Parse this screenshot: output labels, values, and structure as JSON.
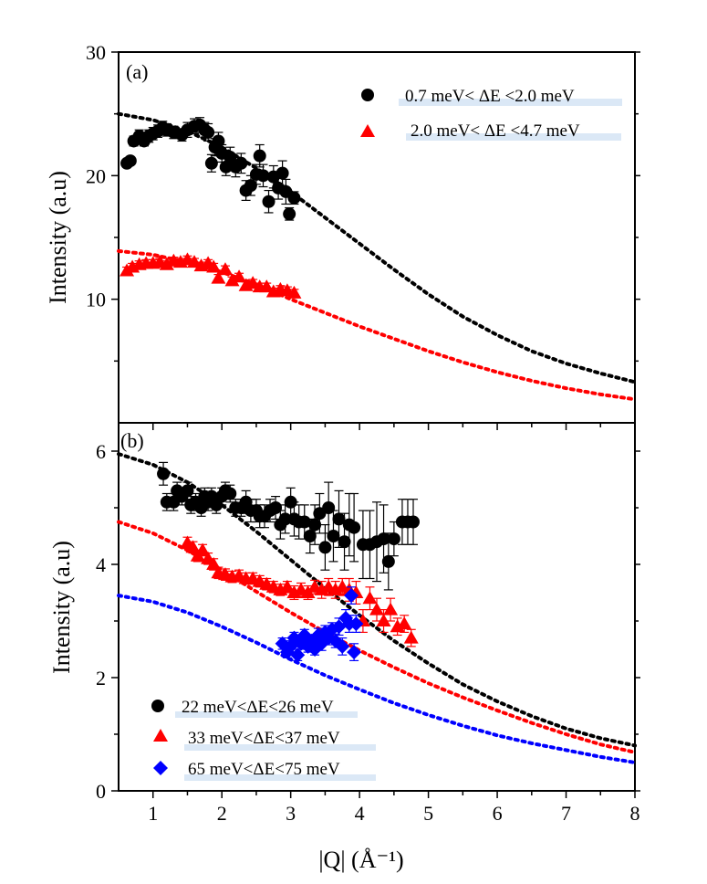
{
  "chart_data": [
    {
      "type": "scatter",
      "panel_label": "(a)",
      "ylabel": "Intensity (a.u)",
      "xlabel": "|Q| (Å⁻¹)",
      "xlim": [
        0.5,
        8
      ],
      "ylim": [
        0,
        30
      ],
      "xticks": [
        1,
        2,
        3,
        4,
        5,
        6,
        7,
        8
      ],
      "yticks": [
        10,
        20,
        30
      ],
      "ytick_labels": [
        "10",
        "20",
        "30"
      ],
      "legend_position": "top-right",
      "series": [
        {
          "name": "0.7 meV< ΔE <2.0 meV",
          "marker": "circle",
          "color": "#000000",
          "x": [
            0.62,
            0.67,
            0.72,
            0.8,
            0.87,
            0.94,
            1.0,
            1.07,
            1.14,
            1.2,
            1.3,
            1.42,
            1.5,
            1.6,
            1.68,
            1.75,
            1.8,
            1.85,
            1.9,
            1.95,
            2.0,
            2.06,
            2.12,
            2.2,
            2.28,
            2.35,
            2.42,
            2.5,
            2.55,
            2.6,
            2.68,
            2.75,
            2.82,
            2.88,
            2.93,
            2.98,
            3.05
          ],
          "y": [
            21.0,
            21.2,
            22.8,
            23.2,
            22.8,
            23.2,
            23.4,
            23.6,
            23.9,
            23.7,
            23.5,
            23.3,
            23.7,
            24.0,
            24.1,
            23.7,
            23.5,
            21.0,
            22.3,
            22.8,
            21.8,
            20.7,
            21.5,
            20.7,
            21.0,
            18.8,
            19.2,
            20.1,
            21.6,
            20.0,
            17.9,
            19.9,
            19.0,
            20.2,
            18.7,
            16.9,
            18.2
          ],
          "err": [
            0.3,
            0.3,
            0.4,
            0.5,
            0.4,
            0.5,
            0.5,
            0.5,
            0.5,
            0.5,
            0.5,
            0.5,
            0.6,
            0.6,
            0.6,
            0.6,
            0.7,
            0.7,
            0.7,
            0.7,
            0.7,
            0.7,
            0.8,
            0.8,
            0.8,
            0.8,
            0.8,
            0.8,
            0.9,
            0.9,
            0.9,
            0.9,
            0.9,
            1.0,
            1.0,
            0.5,
            0.5
          ]
        },
        {
          "name": "2.0 meV< ΔE <4.7 meV",
          "marker": "triangle",
          "color": "#ff0000",
          "x": [
            0.62,
            0.7,
            0.8,
            0.9,
            1.0,
            1.1,
            1.2,
            1.3,
            1.4,
            1.5,
            1.6,
            1.7,
            1.8,
            1.88,
            1.95,
            2.05,
            2.15,
            2.25,
            2.35,
            2.45,
            2.55,
            2.65,
            2.75,
            2.85,
            2.95,
            3.05
          ],
          "y": [
            12.3,
            12.6,
            12.8,
            12.9,
            12.9,
            13.0,
            12.8,
            13.1,
            13.0,
            13.2,
            13.0,
            12.7,
            12.9,
            12.6,
            11.7,
            12.4,
            11.5,
            11.8,
            11.1,
            11.3,
            11.0,
            11.0,
            10.6,
            10.8,
            10.7,
            10.5
          ],
          "err": [
            0.3,
            0.3,
            0.3,
            0.3,
            0.3,
            0.3,
            0.3,
            0.3,
            0.3,
            0.3,
            0.3,
            0.3,
            0.3,
            0.3,
            0.3,
            0.3,
            0.3,
            0.3,
            0.3,
            0.3,
            0.3,
            0.3,
            0.3,
            0.3,
            0.3,
            0.3
          ]
        }
      ],
      "fit_curves": [
        {
          "name": "fit black",
          "color": "#000000",
          "x": [
            0.5,
            1.0,
            1.5,
            2.0,
            2.5,
            3.0,
            3.5,
            4.0,
            4.5,
            5.0,
            5.5,
            6.0,
            6.5,
            7.0,
            7.5,
            8.0
          ],
          "y": [
            25.0,
            24.5,
            23.6,
            22.3,
            20.6,
            18.7,
            16.6,
            14.5,
            12.4,
            10.4,
            8.6,
            7.1,
            5.8,
            4.8,
            4.0,
            3.3
          ]
        },
        {
          "name": "fit red",
          "color": "#ff0000",
          "x": [
            0.5,
            1.0,
            1.5,
            2.0,
            2.5,
            3.0,
            3.5,
            4.0,
            4.5,
            5.0,
            5.5,
            6.0,
            6.5,
            7.0,
            7.5,
            8.0
          ],
          "y": [
            13.9,
            13.6,
            13.0,
            12.2,
            11.2,
            10.0,
            8.9,
            7.8,
            6.8,
            5.8,
            4.9,
            4.1,
            3.4,
            2.8,
            2.3,
            1.9
          ]
        }
      ]
    },
    {
      "type": "scatter",
      "panel_label": "(b)",
      "ylabel": "Intensity (a.u)",
      "xlabel": "|Q| (Å⁻¹)",
      "xlim": [
        0.5,
        8
      ],
      "ylim": [
        0,
        6.5
      ],
      "xticks": [
        1,
        2,
        3,
        4,
        5,
        6,
        7,
        8
      ],
      "xtick_labels": [
        "1",
        "2",
        "3",
        "4",
        "5",
        "6",
        "7",
        "8"
      ],
      "yticks": [
        0,
        2,
        4,
        6
      ],
      "ytick_labels": [
        "0",
        "2",
        "4",
        "6"
      ],
      "legend_position": "bottom-left",
      "series": [
        {
          "name": "22 meV<ΔE<26 meV",
          "marker": "circle",
          "color": "#000000",
          "x": [
            1.15,
            1.2,
            1.3,
            1.35,
            1.42,
            1.5,
            1.55,
            1.62,
            1.7,
            1.75,
            1.8,
            1.85,
            1.92,
            2.0,
            2.05,
            2.12,
            2.2,
            2.28,
            2.35,
            2.42,
            2.5,
            2.55,
            2.62,
            2.7,
            2.78,
            2.85,
            2.92,
            3.0,
            3.05,
            3.12,
            3.2,
            3.28,
            3.35,
            3.42,
            3.5,
            3.55,
            3.62,
            3.7,
            3.78,
            3.85,
            3.92,
            4.05,
            4.15,
            4.25,
            4.35,
            4.42,
            4.5,
            4.62,
            4.7,
            4.78
          ],
          "y": [
            5.6,
            5.1,
            5.1,
            5.3,
            5.2,
            5.3,
            5.05,
            5.1,
            5.0,
            5.2,
            5.1,
            5.2,
            5.05,
            5.2,
            5.3,
            5.25,
            5.0,
            5.0,
            5.1,
            4.95,
            4.95,
            4.85,
            4.85,
            4.95,
            5.0,
            4.7,
            4.8,
            5.1,
            4.8,
            4.75,
            4.75,
            4.5,
            4.7,
            4.9,
            4.3,
            5.0,
            4.5,
            4.8,
            4.4,
            4.7,
            4.65,
            4.35,
            4.35,
            4.4,
            4.45,
            4.05,
            4.45,
            4.75,
            4.75,
            4.75
          ],
          "err": [
            0.2,
            0.15,
            0.15,
            0.15,
            0.15,
            0.15,
            0.15,
            0.15,
            0.15,
            0.15,
            0.15,
            0.15,
            0.15,
            0.15,
            0.15,
            0.15,
            0.15,
            0.15,
            0.2,
            0.2,
            0.2,
            0.2,
            0.2,
            0.2,
            0.2,
            0.25,
            0.25,
            0.25,
            0.3,
            0.3,
            0.3,
            0.3,
            0.35,
            0.35,
            0.4,
            0.45,
            0.45,
            0.5,
            0.5,
            0.55,
            0.6,
            0.6,
            0.6,
            0.7,
            0.6,
            0.5,
            0.3,
            0.4,
            0.4,
            0.4
          ]
        },
        {
          "name": "33 meV<ΔE<37 meV",
          "marker": "triangle",
          "color": "#ff0000",
          "x": [
            1.5,
            1.58,
            1.65,
            1.72,
            1.8,
            1.88,
            1.95,
            2.05,
            2.15,
            2.25,
            2.35,
            2.45,
            2.55,
            2.65,
            2.75,
            2.85,
            2.95,
            3.05,
            3.15,
            3.25,
            3.35,
            3.45,
            3.55,
            3.65,
            3.75,
            3.85,
            3.95,
            4.05,
            4.15,
            4.25,
            4.35,
            4.45,
            4.55,
            4.65,
            4.75
          ],
          "y": [
            4.38,
            4.3,
            4.15,
            4.25,
            4.1,
            4.0,
            3.85,
            3.82,
            3.78,
            3.8,
            3.75,
            3.75,
            3.7,
            3.65,
            3.6,
            3.55,
            3.6,
            3.5,
            3.55,
            3.5,
            3.6,
            3.55,
            3.6,
            3.55,
            3.6,
            3.55,
            3.5,
            3.0,
            3.4,
            3.2,
            3.0,
            3.2,
            2.9,
            2.95,
            2.7
          ],
          "err": [
            0.1,
            0.1,
            0.1,
            0.1,
            0.1,
            0.1,
            0.1,
            0.1,
            0.1,
            0.1,
            0.1,
            0.1,
            0.1,
            0.1,
            0.1,
            0.1,
            0.1,
            0.12,
            0.12,
            0.12,
            0.12,
            0.15,
            0.15,
            0.15,
            0.15,
            0.2,
            0.2,
            0.2,
            0.2,
            0.2,
            0.2,
            0.2,
            0.15,
            0.15,
            0.15
          ]
        },
        {
          "name": "65 meV<ΔE<75 meV",
          "marker": "diamond",
          "color": "#0000ff",
          "x": [
            2.88,
            2.95,
            3.0,
            3.05,
            3.1,
            3.15,
            3.2,
            3.25,
            3.3,
            3.35,
            3.4,
            3.45,
            3.5,
            3.55,
            3.6,
            3.65,
            3.7,
            3.75,
            3.8,
            3.85,
            3.88,
            3.92,
            3.95
          ],
          "y": [
            2.6,
            2.45,
            2.55,
            2.7,
            2.4,
            2.6,
            2.75,
            2.55,
            2.65,
            2.5,
            2.75,
            2.6,
            2.8,
            2.7,
            2.85,
            2.65,
            2.9,
            2.55,
            3.05,
            2.95,
            3.45,
            2.45,
            2.95
          ],
          "err": [
            0.1,
            0.1,
            0.1,
            0.1,
            0.1,
            0.1,
            0.1,
            0.1,
            0.1,
            0.1,
            0.12,
            0.12,
            0.12,
            0.12,
            0.12,
            0.12,
            0.15,
            0.15,
            0.15,
            0.15,
            0.15,
            0.15,
            0.15
          ]
        }
      ],
      "fit_curves": [
        {
          "name": "fit black",
          "color": "#000000",
          "x": [
            0.5,
            1.0,
            1.5,
            2.0,
            2.5,
            3.0,
            3.5,
            4.0,
            4.5,
            5.0,
            5.5,
            6.0,
            6.5,
            7.0,
            7.5,
            8.0
          ],
          "y": [
            5.95,
            5.76,
            5.45,
            5.05,
            4.58,
            4.08,
            3.58,
            3.1,
            2.65,
            2.25,
            1.88,
            1.58,
            1.32,
            1.1,
            0.93,
            0.8
          ]
        },
        {
          "name": "fit red",
          "color": "#ff0000",
          "x": [
            0.5,
            1.0,
            1.5,
            2.0,
            2.5,
            3.0,
            3.5,
            4.0,
            4.5,
            5.0,
            5.5,
            6.0,
            6.5,
            7.0,
            7.5,
            8.0
          ],
          "y": [
            4.75,
            4.55,
            4.25,
            3.9,
            3.52,
            3.15,
            2.8,
            2.48,
            2.18,
            1.9,
            1.65,
            1.42,
            1.2,
            1.0,
            0.82,
            0.68
          ]
        },
        {
          "name": "fit blue",
          "color": "#0000ff",
          "x": [
            0.5,
            1.0,
            1.5,
            2.0,
            2.5,
            3.0,
            3.5,
            4.0,
            4.5,
            5.0,
            5.5,
            6.0,
            6.5,
            7.0,
            7.5,
            8.0
          ],
          "y": [
            3.45,
            3.34,
            3.15,
            2.9,
            2.62,
            2.32,
            2.04,
            1.79,
            1.55,
            1.34,
            1.15,
            0.98,
            0.84,
            0.72,
            0.6,
            0.5
          ]
        }
      ]
    }
  ]
}
